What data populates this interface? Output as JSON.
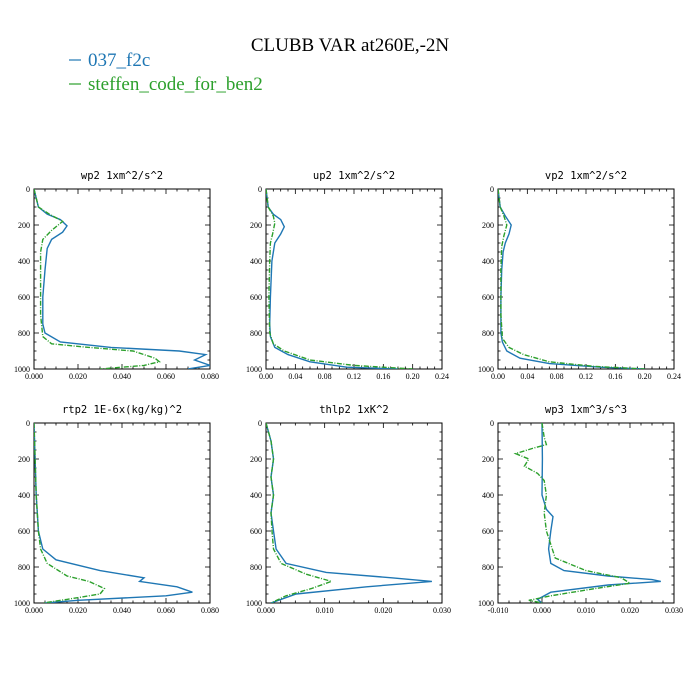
{
  "figure": {
    "title": "CLUBB VAR at260E,-2N",
    "legend": [
      {
        "label": "037_f2c",
        "color": "#1f77b4",
        "dash": false
      },
      {
        "label": "steffen_code_for_ben2",
        "color": "#2ca02c",
        "dash": true
      }
    ]
  },
  "chart_data": [
    {
      "type": "line",
      "title": "wp2  1xm^2/s^2",
      "xlim": [
        0,
        0.08
      ],
      "xticks": [
        "0.000",
        "0.020",
        "0.040",
        "0.060",
        "0.080"
      ],
      "ylim": [
        0,
        1000
      ],
      "yticks": [
        "0",
        "200",
        "400",
        "600",
        "800",
        "1000"
      ],
      "series": [
        {
          "name": "037_f2c",
          "x": [
            0,
            0.002,
            0.006,
            0.012,
            0.015,
            0.013,
            0.008,
            0.006,
            0.005,
            0.004,
            0.004,
            0.005,
            0.012,
            0.035,
            0.066,
            0.078,
            0.073,
            0.08,
            0.07
          ],
          "y": [
            0,
            100,
            140,
            170,
            205,
            240,
            280,
            330,
            450,
            600,
            750,
            800,
            850,
            880,
            900,
            920,
            950,
            980,
            1000
          ]
        },
        {
          "name": "steffen_code_for_ben2",
          "x": [
            0,
            0.002,
            0.007,
            0.013,
            0.008,
            0.004,
            0.003,
            0.003,
            0.003,
            0.004,
            0.008,
            0.025,
            0.045,
            0.055,
            0.057,
            0.05,
            0.03
          ],
          "y": [
            0,
            100,
            140,
            180,
            230,
            280,
            350,
            500,
            700,
            820,
            860,
            880,
            900,
            940,
            960,
            980,
            1000
          ]
        }
      ]
    },
    {
      "type": "line",
      "title": "up2  1xm^2/s^2",
      "xlim": [
        0,
        0.24
      ],
      "xticks": [
        "0.00",
        "0.04",
        "0.08",
        "0.12",
        "0.16",
        "0.20",
        "0.24"
      ],
      "ylim": [
        0,
        1000
      ],
      "yticks": [
        "0",
        "200",
        "400",
        "600",
        "800",
        "1000"
      ],
      "series": [
        {
          "name": "037_f2c",
          "x": [
            0,
            0.003,
            0.01,
            0.02,
            0.025,
            0.02,
            0.012,
            0.008,
            0.006,
            0.005,
            0.006,
            0.012,
            0.03,
            0.06,
            0.11,
            0.18
          ],
          "y": [
            0,
            100,
            140,
            170,
            210,
            250,
            300,
            400,
            600,
            750,
            820,
            880,
            920,
            960,
            990,
            1000
          ]
        },
        {
          "name": "steffen_code_for_ben2",
          "x": [
            0,
            0.003,
            0.01,
            0.012,
            0.009,
            0.006,
            0.005,
            0.004,
            0.005,
            0.01,
            0.025,
            0.06,
            0.12,
            0.2
          ],
          "y": [
            0,
            100,
            150,
            190,
            250,
            300,
            400,
            600,
            800,
            860,
            900,
            950,
            980,
            1000
          ]
        }
      ]
    },
    {
      "type": "line",
      "title": "vp2  1xm^2/s^2",
      "xlim": [
        0,
        0.24
      ],
      "xticks": [
        "0.00",
        "0.04",
        "0.08",
        "0.12",
        "0.16",
        "0.20",
        "0.24"
      ],
      "ylim": [
        0,
        1000
      ],
      "yticks": [
        "0",
        "200",
        "400",
        "600",
        "800",
        "1000"
      ],
      "series": [
        {
          "name": "037_f2c",
          "x": [
            0,
            0.003,
            0.01,
            0.018,
            0.015,
            0.01,
            0.007,
            0.005,
            0.004,
            0.004,
            0.006,
            0.012,
            0.03,
            0.07,
            0.14,
            0.2
          ],
          "y": [
            0,
            100,
            150,
            200,
            250,
            300,
            350,
            450,
            600,
            800,
            850,
            900,
            940,
            970,
            990,
            1000
          ]
        },
        {
          "name": "steffen_code_for_ben2",
          "x": [
            0,
            0.003,
            0.008,
            0.012,
            0.008,
            0.005,
            0.004,
            0.004,
            0.006,
            0.015,
            0.035,
            0.07,
            0.13,
            0.2
          ],
          "y": [
            0,
            100,
            150,
            200,
            260,
            320,
            450,
            700,
            830,
            880,
            920,
            960,
            985,
            1000
          ]
        }
      ]
    },
    {
      "type": "line",
      "title": "rtp2  1E-6x(kg/kg)^2",
      "xlim": [
        0,
        0.08
      ],
      "xticks": [
        "0.000",
        "0.020",
        "0.040",
        "0.060",
        "0.080"
      ],
      "ylim": [
        0,
        1000
      ],
      "yticks": [
        "0",
        "200",
        "400",
        "600",
        "800",
        "1000"
      ],
      "series": [
        {
          "name": "037_f2c",
          "x": [
            0,
            0.0005,
            0.001,
            0.002,
            0.004,
            0.01,
            0.03,
            0.05,
            0.048,
            0.065,
            0.072,
            0.06,
            0.02,
            0.005
          ],
          "y": [
            0,
            200,
            400,
            600,
            700,
            760,
            820,
            860,
            880,
            910,
            940,
            960,
            985,
            1000
          ]
        },
        {
          "name": "steffen_code_for_ben2",
          "x": [
            0,
            0.0005,
            0.001,
            0.002,
            0.003,
            0.006,
            0.015,
            0.025,
            0.032,
            0.03,
            0.015,
            0.004
          ],
          "y": [
            0,
            200,
            400,
            600,
            700,
            780,
            850,
            880,
            920,
            950,
            980,
            1000
          ]
        }
      ]
    },
    {
      "type": "line",
      "title": "thlp2  1xK^2",
      "xlim": [
        0,
        0.035
      ],
      "xticks": [
        "0.000",
        "0.010",
        "0.020",
        "0.030"
      ],
      "ylim": [
        0,
        1000
      ],
      "yticks": [
        "0",
        "200",
        "400",
        "600",
        "800",
        "1000"
      ],
      "series": [
        {
          "name": "037_f2c",
          "x": [
            0,
            0.001,
            0.0015,
            0.001,
            0.0015,
            0.001,
            0.0015,
            0.002,
            0.004,
            0.012,
            0.025,
            0.033,
            0.02,
            0.006,
            0.001
          ],
          "y": [
            0,
            100,
            200,
            300,
            400,
            500,
            600,
            700,
            780,
            830,
            860,
            880,
            910,
            950,
            1000
          ]
        },
        {
          "name": "steffen_code_for_ben2",
          "x": [
            0,
            0.001,
            0.0015,
            0.001,
            0.0015,
            0.001,
            0.0012,
            0.0015,
            0.003,
            0.008,
            0.013,
            0.009,
            0.004,
            0.001
          ],
          "y": [
            0,
            100,
            200,
            300,
            400,
            500,
            600,
            700,
            780,
            840,
            880,
            920,
            960,
            1000
          ]
        }
      ]
    },
    {
      "type": "line",
      "title": "wp3  1xm^3/s^3",
      "xlim": [
        -0.01,
        0.03
      ],
      "xticks": [
        "-0.010",
        "0.000",
        "0.010",
        "0.020",
        "0.030"
      ],
      "ylim": [
        0,
        1000
      ],
      "yticks": [
        "0",
        "200",
        "400",
        "600",
        "800",
        "1000"
      ],
      "series": [
        {
          "name": "037_f2c",
          "x": [
            0,
            0.0001,
            0,
            0.001,
            0.0025,
            0.002,
            0.0015,
            0.002,
            0.005,
            0.015,
            0.025,
            0.027,
            0.015,
            0.002,
            -0.001,
            0
          ],
          "y": [
            0,
            200,
            400,
            480,
            520,
            600,
            700,
            780,
            820,
            850,
            870,
            880,
            900,
            940,
            980,
            1000
          ]
        },
        {
          "name": "steffen_code_for_ben2",
          "x": [
            0,
            0.0005,
            0.001,
            -0.002,
            -0.006,
            -0.003,
            -0.004,
            -0.001,
            0.0005,
            0.001,
            0.0005,
            0.001,
            0.003,
            0.01,
            0.018,
            0.02,
            0.012,
            0.002,
            -0.003,
            0
          ],
          "y": [
            0,
            80,
            120,
            140,
            170,
            200,
            240,
            280,
            320,
            400,
            500,
            600,
            750,
            820,
            860,
            890,
            920,
            960,
            985,
            1000
          ]
        }
      ]
    }
  ]
}
